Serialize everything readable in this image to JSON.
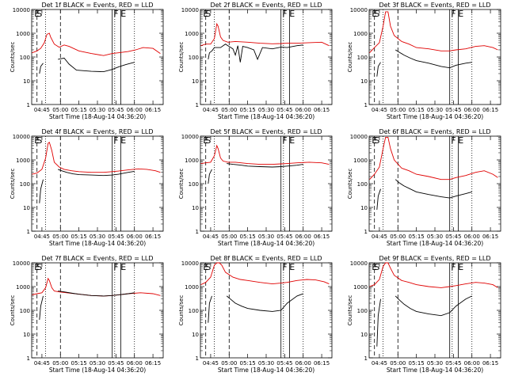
{
  "figure": {
    "ylabel": "Counts/sec",
    "xlabel": "Start Time (18-Aug-14 04:36:20)",
    "xticks": [
      "04:45",
      "05:00",
      "05:15",
      "05:30",
      "05:45",
      "06:00",
      "06:15"
    ],
    "yticks": [
      "1",
      "10",
      "100",
      "1000",
      "10000"
    ],
    "colors": {
      "events": "#000000",
      "lld": "#e00000",
      "axis": "#000000"
    }
  },
  "chart_data": [
    {
      "type": "line",
      "title": "Det 1f BLACK = Events, RED = LLD",
      "yscale": "log",
      "ylim": [
        1,
        10000
      ],
      "xlim_minutes": [
        -8.3,
        98.3
      ],
      "markers": [
        {
          "label": "E",
          "at_min": -4
        },
        {
          "label": "S",
          "at_min": -2
        },
        {
          "label": "F",
          "at_min": 60
        },
        {
          "label": "E",
          "at_min": 66
        }
      ],
      "vlines_dashed": [
        -4,
        15
      ],
      "vlines_dotted": [
        3,
        59,
        75
      ],
      "vlines_solid": [
        57,
        64
      ],
      "series": [
        {
          "role": "lld",
          "x": [
            -8,
            -4,
            -1,
            2,
            4,
            6,
            7,
            10,
            14,
            18,
            22,
            30,
            40,
            50,
            57,
            62,
            70,
            76,
            82,
            90,
            96
          ],
          "y": [
            150,
            180,
            230,
            400,
            900,
            1000,
            700,
            350,
            260,
            320,
            280,
            180,
            140,
            115,
            140,
            150,
            170,
            200,
            250,
            230,
            140
          ]
        },
        {
          "role": "events",
          "x": [
            -2,
            -1,
            1,
            2,
            3,
            7,
            10,
            13,
            18,
            22,
            28,
            40,
            50,
            57,
            62,
            68,
            75
          ],
          "y": [
            20,
            40,
            55,
            0,
            0,
            0,
            0,
            80,
            90,
            50,
            28,
            25,
            24,
            30,
            38,
            48,
            60
          ]
        }
      ]
    },
    {
      "type": "line",
      "title": "Det 2f BLACK = Events, RED = LLD",
      "yscale": "log",
      "ylim": [
        1,
        10000
      ],
      "xlim_minutes": [
        -8.3,
        98.3
      ],
      "markers": [
        {
          "label": "E",
          "at_min": -4
        },
        {
          "label": "S",
          "at_min": -2
        },
        {
          "label": "F",
          "at_min": 60
        },
        {
          "label": "E",
          "at_min": 66
        }
      ],
      "vlines_dashed": [
        -4,
        15
      ],
      "vlines_dotted": [
        3,
        59,
        75
      ],
      "vlines_solid": [
        57,
        64
      ],
      "series": [
        {
          "role": "lld",
          "x": [
            -8,
            -4,
            0,
            3,
            5,
            6,
            8,
            10,
            14,
            20,
            30,
            40,
            50,
            57,
            62,
            70,
            80,
            90,
            96
          ],
          "y": [
            300,
            350,
            350,
            600,
            2500,
            2000,
            700,
            500,
            420,
            450,
            420,
            380,
            360,
            370,
            380,
            380,
            400,
            420,
            300
          ]
        },
        {
          "role": "events",
          "x": [
            -2,
            -1,
            1,
            3,
            8,
            12,
            14,
            18,
            20,
            22,
            24,
            26,
            30,
            35,
            38,
            42,
            50,
            57,
            62,
            70,
            75
          ],
          "y": [
            80,
            150,
            180,
            250,
            250,
            350,
            300,
            220,
            120,
            300,
            60,
            280,
            250,
            200,
            80,
            250,
            220,
            260,
            250,
            300,
            320
          ]
        }
      ]
    },
    {
      "type": "line",
      "title": "Det 3f BLACK = Events, RED = LLD",
      "yscale": "log",
      "ylim": [
        1,
        10000
      ],
      "xlim_minutes": [
        -8.3,
        98.3
      ],
      "markers": [
        {
          "label": "E",
          "at_min": -4
        },
        {
          "label": "S",
          "at_min": -2
        },
        {
          "label": "F",
          "at_min": 60
        },
        {
          "label": "E",
          "at_min": 66
        }
      ],
      "vlines_dashed": [
        -4,
        15
      ],
      "vlines_dotted": [
        3,
        59,
        75
      ],
      "vlines_solid": [
        57,
        64
      ],
      "series": [
        {
          "role": "lld",
          "x": [
            -8,
            -4,
            0,
            3,
            5,
            7,
            9,
            12,
            18,
            24,
            30,
            40,
            50,
            57,
            62,
            70,
            78,
            85,
            92,
            96
          ],
          "y": [
            150,
            250,
            400,
            2000,
            8000,
            8000,
            2000,
            800,
            450,
            350,
            250,
            220,
            180,
            180,
            200,
            220,
            280,
            300,
            250,
            200
          ]
        },
        {
          "role": "events",
          "x": [
            -2,
            -1,
            1,
            2,
            13,
            16,
            20,
            25,
            30,
            40,
            50,
            57,
            62,
            70,
            75
          ],
          "y": [
            15,
            40,
            60,
            0,
            200,
            160,
            120,
            90,
            70,
            55,
            40,
            35,
            45,
            55,
            60
          ]
        }
      ]
    },
    {
      "type": "line",
      "title": "Det 4f BLACK = Events, RED = LLD",
      "yscale": "log",
      "ylim": [
        1,
        10000
      ],
      "xlim_minutes": [
        -8.3,
        98.3
      ],
      "markers": [
        {
          "label": "E",
          "at_min": -4
        },
        {
          "label": "S",
          "at_min": -2
        },
        {
          "label": "F",
          "at_min": 60
        },
        {
          "label": "E",
          "at_min": 66
        }
      ],
      "vlines_dashed": [
        -4,
        15
      ],
      "vlines_dotted": [
        3,
        59,
        75
      ],
      "vlines_solid": [
        57,
        64
      ],
      "series": [
        {
          "role": "lld",
          "x": [
            -8,
            -4,
            0,
            3,
            5,
            6,
            8,
            10,
            14,
            18,
            24,
            30,
            40,
            50,
            57,
            62,
            70,
            78,
            85,
            92,
            96
          ],
          "y": [
            250,
            280,
            400,
            1200,
            5000,
            5500,
            2500,
            800,
            500,
            400,
            350,
            320,
            300,
            300,
            320,
            340,
            380,
            420,
            400,
            350,
            300
          ]
        },
        {
          "role": "events",
          "x": [
            -2,
            -1,
            1,
            2,
            13,
            16,
            20,
            25,
            30,
            40,
            50,
            57,
            62,
            70,
            75
          ],
          "y": [
            15,
            60,
            150,
            0,
            400,
            350,
            300,
            260,
            240,
            230,
            220,
            230,
            250,
            300,
            330
          ]
        }
      ]
    },
    {
      "type": "line",
      "title": "Det 5f BLACK = Events, RED = LLD",
      "yscale": "log",
      "ylim": [
        1,
        10000
      ],
      "xlim_minutes": [
        -8.3,
        98.3
      ],
      "markers": [
        {
          "label": "E",
          "at_min": -4
        },
        {
          "label": "S",
          "at_min": -2
        },
        {
          "label": "F",
          "at_min": 60
        },
        {
          "label": "E",
          "at_min": 66
        }
      ],
      "vlines_dashed": [
        -4,
        15
      ],
      "vlines_dotted": [
        3,
        59,
        75
      ],
      "vlines_solid": [
        57,
        64
      ],
      "series": [
        {
          "role": "lld",
          "x": [
            -8,
            -4,
            0,
            3,
            5,
            6,
            8,
            10,
            14,
            20,
            30,
            40,
            50,
            57,
            62,
            70,
            80,
            90,
            96
          ],
          "y": [
            700,
            750,
            800,
            1500,
            4000,
            3000,
            1200,
            900,
            800,
            800,
            700,
            650,
            650,
            680,
            700,
            750,
            800,
            750,
            650
          ]
        },
        {
          "role": "events",
          "x": [
            -2,
            -1,
            1,
            2,
            13,
            18,
            25,
            30,
            40,
            50,
            57,
            62,
            70,
            75
          ],
          "y": [
            100,
            250,
            400,
            0,
            700,
            650,
            600,
            550,
            520,
            500,
            520,
            550,
            600,
            650
          ]
        }
      ]
    },
    {
      "type": "line",
      "title": "Det 6f BLACK = Events, RED = LLD",
      "yscale": "log",
      "ylim": [
        1,
        10000
      ],
      "xlim_minutes": [
        -8.3,
        98.3
      ],
      "markers": [
        {
          "label": "E",
          "at_min": -4
        },
        {
          "label": "S",
          "at_min": -2
        },
        {
          "label": "F",
          "at_min": 60
        },
        {
          "label": "E",
          "at_min": 66
        }
      ],
      "vlines_dashed": [
        -4,
        15
      ],
      "vlines_dotted": [
        3,
        59,
        75
      ],
      "vlines_solid": [
        57,
        64
      ],
      "series": [
        {
          "role": "lld",
          "x": [
            -8,
            -4,
            0,
            3,
            5,
            7,
            9,
            12,
            18,
            24,
            30,
            40,
            50,
            57,
            62,
            70,
            78,
            85,
            92,
            96
          ],
          "y": [
            150,
            250,
            500,
            3000,
            9000,
            9000,
            3000,
            1000,
            450,
            350,
            250,
            200,
            150,
            150,
            180,
            220,
            300,
            350,
            250,
            180
          ]
        },
        {
          "role": "events",
          "x": [
            -2,
            -1,
            1,
            2,
            13,
            16,
            20,
            25,
            30,
            40,
            50,
            57,
            62,
            70,
            75
          ],
          "y": [
            8,
            30,
            60,
            0,
            150,
            110,
            80,
            60,
            45,
            35,
            28,
            25,
            30,
            38,
            45
          ]
        }
      ]
    },
    {
      "type": "line",
      "title": "Det 7f BLACK = Events, RED = LLD",
      "yscale": "log",
      "ylim": [
        1,
        10000
      ],
      "xlim_minutes": [
        -8.3,
        98.3
      ],
      "markers": [
        {
          "label": "E",
          "at_min": -4
        },
        {
          "label": "S",
          "at_min": -2
        },
        {
          "label": "F",
          "at_min": 60
        },
        {
          "label": "E",
          "at_min": 66
        }
      ],
      "vlines_dashed": [
        -4,
        15
      ],
      "vlines_dotted": [
        3,
        59,
        75
      ],
      "vlines_solid": [
        57,
        64
      ],
      "series": [
        {
          "role": "lld",
          "x": [
            -8,
            -4,
            0,
            3,
            5,
            6,
            8,
            10,
            14,
            20,
            30,
            40,
            50,
            57,
            62,
            70,
            80,
            90,
            96
          ],
          "y": [
            450,
            500,
            550,
            900,
            2200,
            1800,
            900,
            650,
            600,
            550,
            480,
            420,
            400,
            420,
            450,
            500,
            550,
            500,
            420
          ]
        },
        {
          "role": "events",
          "x": [
            -2,
            -1,
            1,
            2,
            13,
            18,
            25,
            30,
            40,
            50,
            57,
            62,
            70,
            75
          ],
          "y": [
            40,
            150,
            400,
            0,
            650,
            600,
            520,
            480,
            420,
            400,
            420,
            450,
            500,
            550
          ]
        }
      ]
    },
    {
      "type": "line",
      "title": "Det 8f BLACK = Events, RED = LLD",
      "yscale": "log",
      "ylim": [
        1,
        10000
      ],
      "xlim_minutes": [
        -8.3,
        98.3
      ],
      "markers": [
        {
          "label": "E",
          "at_min": -4
        },
        {
          "label": "S",
          "at_min": -2
        },
        {
          "label": "F",
          "at_min": 60
        },
        {
          "label": "E",
          "at_min": 66
        }
      ],
      "vlines_dashed": [
        -4,
        15
      ],
      "vlines_dotted": [
        3,
        59,
        75
      ],
      "vlines_solid": [
        57,
        64
      ],
      "series": [
        {
          "role": "lld",
          "x": [
            -8,
            -4,
            0,
            3,
            5,
            7,
            9,
            12,
            18,
            24,
            30,
            40,
            50,
            57,
            62,
            70,
            78,
            85,
            92,
            96
          ],
          "y": [
            1200,
            1500,
            2500,
            8000,
            10000,
            10000,
            8000,
            4000,
            2500,
            2000,
            1800,
            1500,
            1300,
            1400,
            1500,
            1800,
            2000,
            1900,
            1600,
            1300
          ]
        },
        {
          "role": "events",
          "x": [
            -2,
            -1,
            1,
            2,
            13,
            16,
            20,
            25,
            30,
            40,
            50,
            57,
            62,
            70,
            75
          ],
          "y": [
            30,
            200,
            400,
            0,
            400,
            300,
            200,
            150,
            120,
            100,
            90,
            100,
            200,
            400,
            500
          ]
        }
      ]
    },
    {
      "type": "line",
      "title": "Det 9f BLACK = Events, RED = LLD",
      "yscale": "log",
      "ylim": [
        1,
        10000
      ],
      "xlim_minutes": [
        -8.3,
        98.3
      ],
      "markers": [
        {
          "label": "E",
          "at_min": -4
        },
        {
          "label": "S",
          "at_min": -2
        },
        {
          "label": "F",
          "at_min": 60
        },
        {
          "label": "E",
          "at_min": 66
        }
      ],
      "vlines_dashed": [
        -4,
        15
      ],
      "vlines_dotted": [
        3,
        59,
        75
      ],
      "vlines_solid": [
        57,
        64
      ],
      "series": [
        {
          "role": "lld",
          "x": [
            -8,
            -4,
            0,
            3,
            5,
            7,
            9,
            12,
            18,
            24,
            30,
            40,
            50,
            57,
            62,
            70,
            78,
            85,
            92,
            96
          ],
          "y": [
            1000,
            1200,
            2000,
            7000,
            10000,
            10000,
            6000,
            3000,
            1800,
            1500,
            1200,
            1000,
            900,
            1000,
            1100,
            1300,
            1500,
            1400,
            1200,
            900
          ]
        },
        {
          "role": "events",
          "x": [
            -2,
            -1,
            1,
            2,
            13,
            16,
            20,
            25,
            30,
            40,
            50,
            57,
            62,
            70,
            75
          ],
          "y": [
            3,
            60,
            300,
            0,
            400,
            280,
            180,
            120,
            90,
            70,
            60,
            80,
            150,
            300,
            400
          ]
        }
      ]
    }
  ]
}
